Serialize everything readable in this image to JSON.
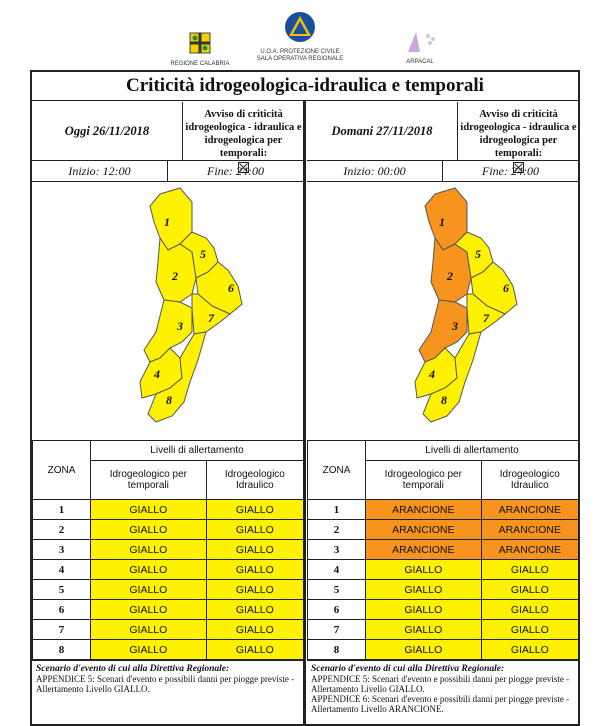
{
  "logos": {
    "regione": "REGIONE CALABRIA",
    "protezione_line1": "U.O.A. PROTEZIONE CIVILE",
    "protezione_line2": "SALA OPERATIVA REGIONALE",
    "arpacal": "ARPACAL"
  },
  "title": "Criticità idrogeologica-idraulica e temporali",
  "left": {
    "date": "Oggi 26/11/2018",
    "avviso": "Avviso di criticità idrogeologica - idraulica e idrogeologica per temporali:",
    "inizio": "Inizio: 12:00",
    "fine": "Fine: 24:00"
  },
  "right": {
    "date": "Domani 27/11/2018",
    "avviso": "Avviso di criticità idrogeologica - idraulica e idrogeologica per temporali:",
    "inizio": "Inizio: 00:00",
    "fine": "Fine: 24:00"
  },
  "table_headers": {
    "zona": "ZONA",
    "livelli": "Livelli di allertamento",
    "col1": "Idrogeologico per temporali",
    "col2": "Idrogeologico Idraulico"
  },
  "zones_today": [
    {
      "zona": "1",
      "a": "GIALLO",
      "b": "GIALLO"
    },
    {
      "zona": "2",
      "a": "GIALLO",
      "b": "GIALLO"
    },
    {
      "zona": "3",
      "a": "GIALLO",
      "b": "GIALLO"
    },
    {
      "zona": "4",
      "a": "GIALLO",
      "b": "GIALLO"
    },
    {
      "zona": "5",
      "a": "GIALLO",
      "b": "GIALLO"
    },
    {
      "zona": "6",
      "a": "GIALLO",
      "b": "GIALLO"
    },
    {
      "zona": "7",
      "a": "GIALLO",
      "b": "GIALLO"
    },
    {
      "zona": "8",
      "a": "GIALLO",
      "b": "GIALLO"
    }
  ],
  "zones_tomorrow": [
    {
      "zona": "1",
      "a": "ARANCIONE",
      "b": "ARANCIONE"
    },
    {
      "zona": "2",
      "a": "ARANCIONE",
      "b": "ARANCIONE"
    },
    {
      "zona": "3",
      "a": "ARANCIONE",
      "b": "ARANCIONE"
    },
    {
      "zona": "4",
      "a": "GIALLO",
      "b": "GIALLO"
    },
    {
      "zona": "5",
      "a": "GIALLO",
      "b": "GIALLO"
    },
    {
      "zona": "6",
      "a": "GIALLO",
      "b": "GIALLO"
    },
    {
      "zona": "7",
      "a": "GIALLO",
      "b": "GIALLO"
    },
    {
      "zona": "8",
      "a": "GIALLO",
      "b": "GIALLO"
    }
  ],
  "colors": {
    "GIALLO": "#fff200",
    "ARANCIONE": "#f7941d"
  },
  "scenario_left": {
    "head": "Scenario d'evento di cui alla Direttiva Regionale:",
    "lines": [
      "APPENDICE 5: Scenari d'evento e possibili danni per piogge previste - Allertamento Livello GIALLO."
    ]
  },
  "scenario_right": {
    "head": "Scenario d'evento di cui alla Direttiva Regionale:",
    "lines": [
      "APPENDICE 5: Scenari d'evento e possibili danni per piogge previste - Allertamento Livello GIALLO.",
      "APPENDICE 6: Scenari d'evento e possibili danni per piogge previste - Allertamento Livello ARANCIONE."
    ]
  },
  "map_labels": [
    "1",
    "2",
    "3",
    "4",
    "5",
    "6",
    "7",
    "8"
  ]
}
